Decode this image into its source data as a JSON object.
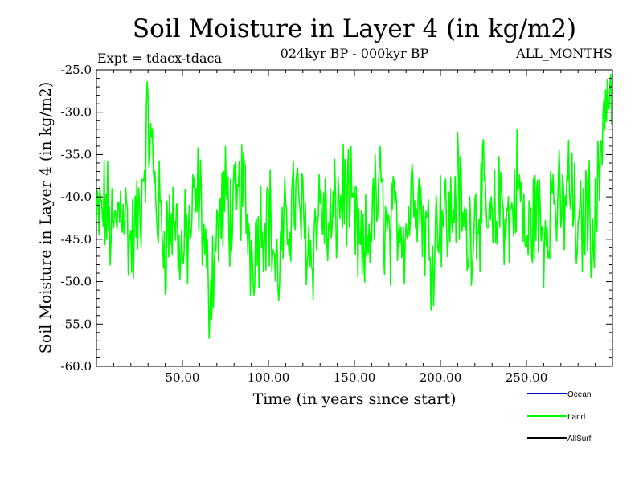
{
  "chart_data": {
    "type": "line",
    "title": "Soil Moisture in Layer 4 (in kg/m2)",
    "subtitle": "024kyr BP - 000kyr BP",
    "experiment_label": "Expt = tdacx-tdaca",
    "months_label": "ALL_MONTHS",
    "xlabel": "Time (in years since start)",
    "ylabel": "Soil Moisture in Layer 4 (in kg/m2)",
    "xlim": [
      0,
      300
    ],
    "ylim": [
      -60,
      -25
    ],
    "x_ticks": [
      50,
      100,
      150,
      200,
      250
    ],
    "x_tick_labels": [
      "50.00",
      "100.00",
      "150.00",
      "200.00",
      "250.00"
    ],
    "y_ticks": [
      -25,
      -30,
      -35,
      -40,
      -45,
      -50,
      -55,
      -60
    ],
    "y_tick_labels": [
      "-25.0",
      "-30.0",
      "-35.0",
      "-40.0",
      "-45.0",
      "-50.0",
      "-55.0",
      "-60.0"
    ],
    "grid": false,
    "legend": [
      {
        "name": "Ocean",
        "color": "#0000cc"
      },
      {
        "name": "Land",
        "color": "#00ff00"
      },
      {
        "name": "AllSurf",
        "color": "#000000"
      }
    ],
    "series": [
      {
        "name": "Land",
        "color": "#00ff00",
        "x_start": 0,
        "x_step": 5,
        "values": [
          -43.5,
          -41.2,
          -44.8,
          -39.6,
          -46.1,
          -42.3,
          -31.0,
          -40.5,
          -45.2,
          -41.8,
          -47.3,
          -43.0,
          -39.2,
          -51.5,
          -44.6,
          -40.1,
          -42.9,
          -38.3,
          -46.5,
          -43.2,
          -41.1,
          -49.7,
          -44.0,
          -39.8,
          -42.6,
          -46.9,
          -40.3,
          -44.4,
          -41.5,
          -38.9,
          -43.7,
          -48.1,
          -42.2,
          -39.5,
          -45.8,
          -41.9,
          -44.1,
          -37.4,
          -42.8,
          -46.4,
          -40.9,
          -43.3,
          -38.6,
          -45.1,
          -42.0,
          -40.7,
          -44.9,
          -39.9,
          -43.6,
          -37.8,
          -46.0,
          -41.4,
          -44.3,
          -39.3,
          -42.5,
          -38.1,
          -45.5,
          -41.0,
          -43.9,
          -28.5
        ]
      }
    ]
  }
}
